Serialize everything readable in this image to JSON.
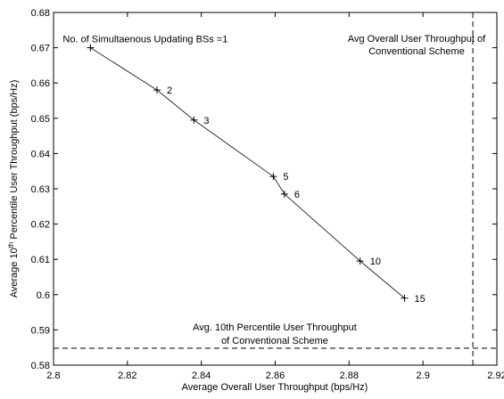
{
  "chart_data": {
    "type": "line",
    "title": "",
    "xlabel": "Average Overall User Throughput (bps/Hz)",
    "ylabel_parts": {
      "before": "Average 10",
      "sup": "th",
      "after": " Percentile User Throughput (bps/Hz)"
    },
    "xlim": [
      2.8,
      2.92
    ],
    "ylim": [
      0.58,
      0.68
    ],
    "xticks": [
      2.8,
      2.82,
      2.84,
      2.86,
      2.88,
      2.9,
      2.92
    ],
    "yticks": [
      0.58,
      0.59,
      0.6,
      0.61,
      0.62,
      0.63,
      0.64,
      0.65,
      0.66,
      0.67,
      0.68
    ],
    "xtick_labels": [
      "2.8",
      "2.82",
      "2.84",
      "2.86",
      "2.88",
      "2.9",
      "2.92"
    ],
    "ytick_labels": [
      "0.58",
      "0.59",
      "0.6",
      "0.61",
      "0.62",
      "0.63",
      "0.64",
      "0.65",
      "0.66",
      "0.67",
      "0.68"
    ],
    "grid": false,
    "line_color": "#000000",
    "series": [
      {
        "x": [
          2.81,
          2.828,
          2.838,
          2.8595,
          2.8625,
          2.883,
          2.895
        ],
        "y": [
          0.67,
          0.658,
          0.6495,
          0.6335,
          0.6285,
          0.6095,
          0.599
        ],
        "labels": [
          "No. of Simultaenous Updating BSs =1",
          "2",
          "3",
          "5",
          "6",
          "10",
          "15"
        ],
        "marker": "+"
      }
    ],
    "reference_lines": {
      "vertical": {
        "x": 2.9135,
        "label_line1": "Avg Overall User Throughput of",
        "label_line2": "Conventional Scheme"
      },
      "horizontal": {
        "y": 0.5848,
        "label_line1": "Avg. 10th Percentile User Throughput",
        "label_line2": "of Conventional Scheme"
      }
    }
  }
}
